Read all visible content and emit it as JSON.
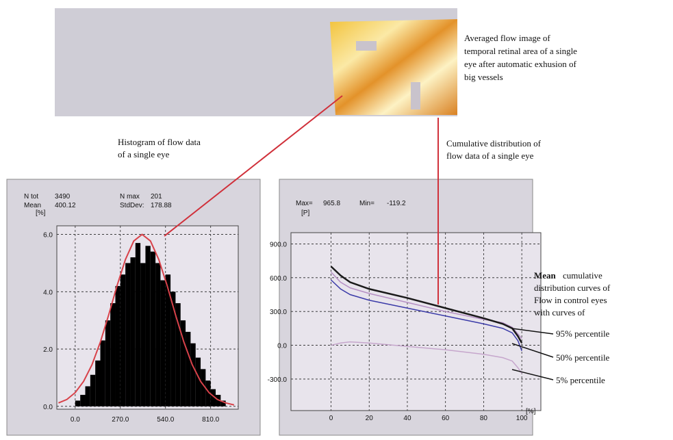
{
  "image_caption": [
    "Averaged flow image of",
    "temporal retinal area of a single",
    "eye after automatic exhusion of",
    "big vessels"
  ],
  "histogram_caption": [
    "Histogram of flow data",
    "of a single eye"
  ],
  "cumulative_caption": [
    "Cumulative distribution of",
    "flow data of a single eye"
  ],
  "mean_caption": {
    "bold": "Mean",
    "lines": [
      "cumulative",
      "distribution curves of",
      "Flow in control eyes",
      "with curves of"
    ]
  },
  "percentile_labels": [
    "95% percentile",
    "50% percentile",
    "5% percentile"
  ],
  "chart_data": [
    {
      "type": "histogram",
      "stats": [
        {
          "label": "N tot",
          "value": 3490
        },
        {
          "label": "N max",
          "value": 201
        },
        {
          "label": "Mean",
          "value": 400.12
        },
        {
          "label": "StdDev:",
          "value": 178.88
        }
      ],
      "y_label": "[%]",
      "bins": [
        0,
        30,
        60,
        90,
        120,
        150,
        180,
        210,
        240,
        270,
        300,
        330,
        360,
        390,
        420,
        450,
        480,
        510,
        540,
        570,
        600,
        630,
        660,
        690,
        720,
        750,
        780,
        810,
        840,
        870,
        900
      ],
      "counts": [
        0.2,
        0.4,
        0.7,
        1.1,
        1.6,
        2.3,
        3.0,
        3.6,
        4.2,
        4.6,
        5.0,
        5.2,
        5.7,
        5.0,
        5.6,
        5.4,
        5.0,
        4.4,
        4.6,
        4.0,
        3.6,
        3.0,
        2.6,
        2.2,
        1.7,
        1.3,
        0.9,
        0.6,
        0.4,
        0.2
      ],
      "color": "#000000",
      "curves": [
        {
          "color": "#d8424a",
          "x": [
            -100,
            -50,
            0,
            50,
            100,
            150,
            200,
            250,
            300,
            350,
            400,
            450,
            500,
            550,
            600,
            650,
            700,
            750,
            800,
            850,
            900,
            950
          ],
          "values": [
            0.12,
            0.24,
            0.48,
            0.87,
            1.45,
            2.24,
            3.19,
            4.21,
            5.12,
            5.77,
            6.0,
            5.77,
            5.12,
            4.21,
            3.19,
            2.24,
            1.45,
            0.87,
            0.48,
            0.24,
            0.12,
            0.05
          ]
        }
      ],
      "xlim": [
        -110,
        975
      ],
      "ylim": [
        -0.1,
        6.3
      ],
      "xticks": [
        {
          "value": 0,
          "label": "0.0"
        },
        {
          "value": 270,
          "label": "270.0"
        },
        {
          "value": 540,
          "label": "540.0"
        },
        {
          "value": 810,
          "label": "810.0"
        }
      ],
      "yticks": [
        {
          "value": 0,
          "label": "0.0"
        },
        {
          "value": 2,
          "label": "2.0"
        },
        {
          "value": 4,
          "label": "4.0"
        },
        {
          "value": 6,
          "label": "6.0"
        }
      ],
      "grid": true
    },
    {
      "type": "line",
      "stats": [
        {
          "label": "Max=",
          "value": 965.8
        },
        {
          "label": "Min=",
          "value": -119.2
        }
      ],
      "y_label": "[P]",
      "x_label": "[%]",
      "x": [
        0,
        5,
        10,
        20,
        40,
        60,
        80,
        90,
        95,
        98,
        100
      ],
      "series": [
        {
          "color": "#b58fc4",
          "values": [
            650,
            560,
            510,
            460,
            380,
            300,
            230,
            200,
            160,
            100,
            60
          ]
        },
        {
          "color": "#c6a6cc",
          "values": [
            0,
            20,
            30,
            20,
            -10,
            -40,
            -80,
            -110,
            -140,
            -200,
            -250
          ]
        },
        {
          "color": "#3a3aa8",
          "values": [
            580,
            500,
            450,
            400,
            330,
            260,
            190,
            150,
            110,
            40,
            -50
          ]
        },
        {
          "color": "#1a1a1a",
          "values": [
            700,
            620,
            560,
            500,
            420,
            330,
            240,
            190,
            150,
            80,
            20
          ]
        }
      ],
      "xlim": [
        -21,
        110
      ],
      "ylim": [
        -580,
        1000
      ],
      "xticks": [
        0,
        20,
        40,
        60,
        80,
        100
      ],
      "yticks": [
        {
          "value": -300,
          "label": "-300.0"
        },
        {
          "value": 0,
          "label": "0.0"
        },
        {
          "value": 300,
          "label": "300.0"
        },
        {
          "value": 600,
          "label": "600.0"
        },
        {
          "value": 900,
          "label": "900.0"
        }
      ],
      "grid": true
    }
  ]
}
